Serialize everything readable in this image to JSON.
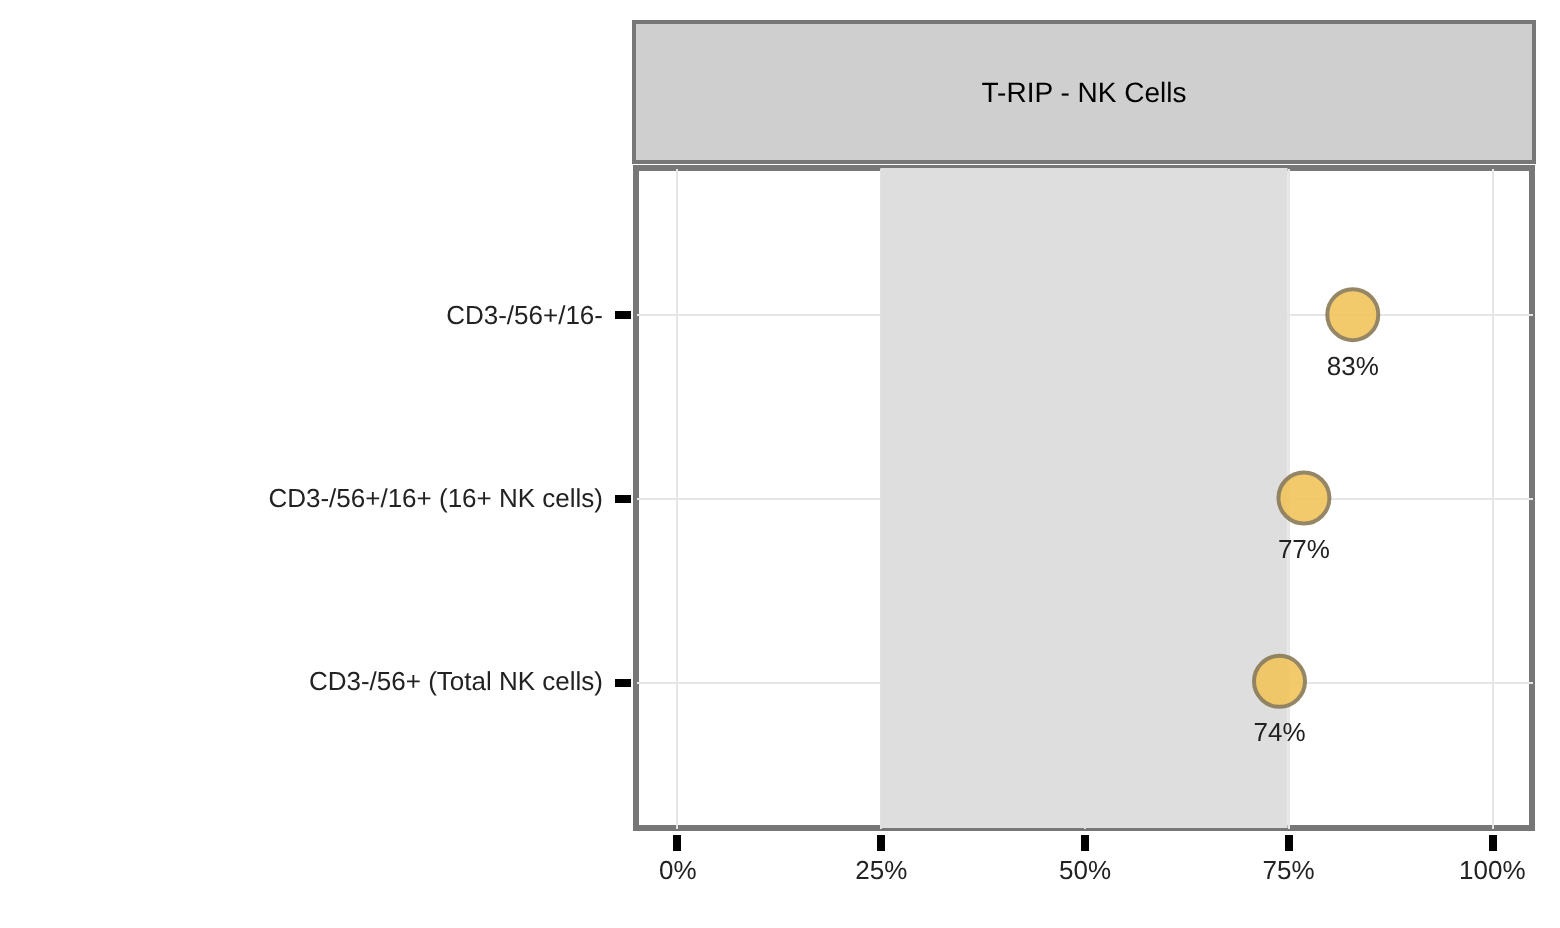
{
  "chart_data": {
    "type": "scatter",
    "title": "T-RIP - NK Cells",
    "orientation": "horizontal",
    "categories": [
      "CD3-/56+/16-",
      "CD3-/56+/16+ (16+ NK cells)",
      "CD3-/56+ (Total NK cells)"
    ],
    "values": [
      83,
      77,
      74
    ],
    "value_labels": [
      "83%",
      "77%",
      "74%"
    ],
    "color": "#f2c55c",
    "xlim": [
      -5,
      105
    ],
    "xticks": [
      {
        "value": 0,
        "label": "0%"
      },
      {
        "value": 25,
        "label": "25%"
      },
      {
        "value": 50,
        "label": "50%"
      },
      {
        "value": 75,
        "label": "75%"
      },
      {
        "value": 100,
        "label": "100%"
      }
    ],
    "bands": [
      {
        "axis": "x",
        "from": 25,
        "to": 75,
        "color": "#dedede"
      }
    ],
    "grid": true,
    "marker": "circle"
  }
}
